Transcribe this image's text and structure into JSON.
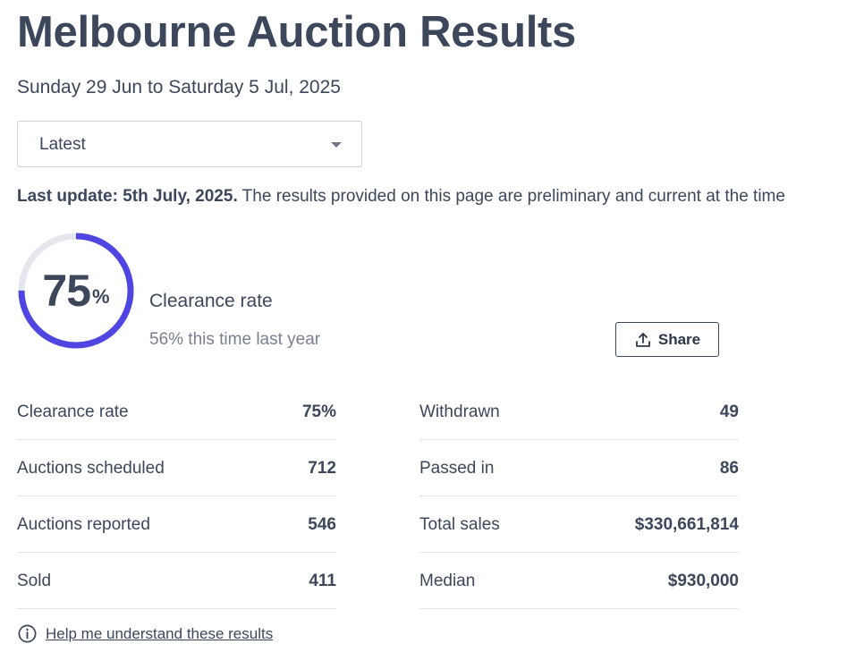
{
  "header": {
    "title": "Melbourne Auction Results",
    "date_range": "Sunday 29 Jun to Saturday 5 Jul, 2025"
  },
  "period_select": {
    "value": "Latest"
  },
  "update_note": {
    "bold": "Last update: 5th July, 2025.",
    "text": " The results provided on this page are preliminary and current at the time"
  },
  "clearance": {
    "value": "75",
    "percent_sign": "%",
    "fraction": 0.75,
    "label": "Clearance rate",
    "last_year": "56% this time last year",
    "ring_color": "#4f45e0",
    "track_color": "#e6e7ee"
  },
  "share_button": {
    "label": "Share",
    "icon": "share-upload-icon"
  },
  "stats_left": [
    {
      "label": "Clearance rate",
      "value": "75%"
    },
    {
      "label": "Auctions scheduled",
      "value": "712"
    },
    {
      "label": "Auctions reported",
      "value": "546"
    },
    {
      "label": "Sold",
      "value": "411"
    }
  ],
  "stats_right": [
    {
      "label": "Withdrawn",
      "value": "49"
    },
    {
      "label": "Passed in",
      "value": "86"
    },
    {
      "label": "Total sales",
      "value": "$330,661,814"
    },
    {
      "label": "Median",
      "value": "$930,000"
    }
  ],
  "help": {
    "icon": "info-circle-icon",
    "link_text": "Help me understand these results"
  }
}
